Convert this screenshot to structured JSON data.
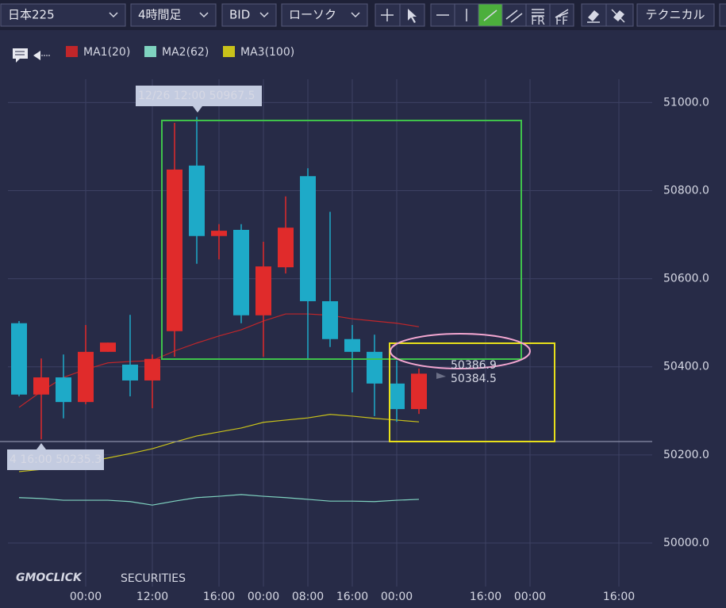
{
  "toolbar": {
    "symbol": "日本225",
    "timeframe": "4時間足",
    "price_type": "BID",
    "chart_style": "ローソク",
    "technical": "テクニカル"
  },
  "watermark": {
    "brand": "GMOCLICK",
    "suffix": "SECURITIES"
  },
  "chart_data": {
    "type": "candlestick",
    "up_color": "#e02b2b",
    "down_color": "#1eaac8",
    "categories": [
      null,
      null,
      null,
      "00:00",
      null,
      null,
      "12:00",
      null,
      null,
      "16:00",
      null,
      "00:00",
      null,
      "08:00",
      null,
      "16:00",
      null,
      "00:00",
      null,
      null,
      null,
      "16:00",
      null,
      "00:00",
      null,
      null,
      null,
      "16:00"
    ],
    "open": [
      50499,
      50337,
      50376,
      50320,
      50434,
      50405,
      50369,
      50481,
      50857,
      50697,
      50711,
      50517,
      50626,
      50833,
      50549,
      50463,
      50434,
      50362,
      50304,
      null,
      null,
      null,
      null,
      null,
      null,
      null,
      null,
      null
    ],
    "high": [
      50504,
      50419,
      50428,
      50495,
      50455,
      50518,
      50428,
      50954,
      50967.5,
      50724,
      50724,
      50684,
      50787,
      50851,
      50752,
      50495,
      50473,
      50414,
      50396,
      null,
      null,
      null,
      null,
      null,
      null,
      null,
      null,
      null
    ],
    "low": [
      50333,
      50235.3,
      50283,
      50315,
      50434,
      50333,
      50306,
      50423,
      50634,
      50644,
      50499,
      50423,
      50612,
      50419,
      50445,
      50342,
      50288,
      50275,
      50293,
      null,
      null,
      null,
      null,
      null,
      null,
      null,
      null,
      null
    ],
    "close": [
      50337,
      50376,
      50320,
      50434,
      50455,
      50369,
      50418,
      50848,
      50697,
      50709,
      50517,
      50628,
      50716,
      50549,
      50463,
      50434,
      50362,
      50304,
      50384.5,
      null,
      null,
      null,
      null,
      null,
      null,
      null,
      null,
      null
    ],
    "series": [
      {
        "name": "MA1(20)",
        "color": "#c0262a",
        "values": [
          50308,
          50344,
          50376,
          50394,
          50409,
          50412,
          50414,
          50436,
          50454,
          50470,
          50484,
          50504,
          50520,
          50520,
          50517,
          50509,
          50504,
          50499,
          50491,
          null,
          null,
          null,
          null,
          null,
          null,
          null,
          null,
          null
        ]
      },
      {
        "name": "MA2(62)",
        "color": "#7fd3c0",
        "values": [
          50103,
          50101,
          50097,
          50097,
          50097,
          50094,
          50086,
          50095,
          50103,
          50106,
          50110,
          50106,
          50103,
          50099,
          50095,
          50095,
          50094,
          50097,
          50099,
          null,
          null,
          null,
          null,
          null,
          null,
          null,
          null,
          null
        ]
      },
      {
        "name": "MA3(100)",
        "color": "#c9c21a",
        "values": [
          50162,
          50167,
          50175,
          50184,
          50193,
          50203,
          50214,
          50229,
          50243,
          50252,
          50261,
          50274,
          50279,
          50284,
          50292,
          50288,
          50283,
          50279,
          50275,
          null,
          null,
          null,
          null,
          null,
          null,
          null,
          null,
          null
        ]
      }
    ],
    "ylim": [
      49900,
      51170
    ],
    "yticks": [
      {
        "value": 50000,
        "label": "50000.0"
      },
      {
        "value": 50200,
        "label": "50200.0"
      },
      {
        "value": 50400,
        "label": "50400.0"
      },
      {
        "value": 50600,
        "label": "50600.0"
      },
      {
        "value": 50800,
        "label": "50800.0"
      },
      {
        "value": 51000,
        "label": "51000.0"
      }
    ],
    "grid": true,
    "tooltips": [
      "12/26 12:00 50967.5",
      "4 16:00 50235.3"
    ],
    "price_labels": [
      "50386.9",
      "50384.5"
    ]
  }
}
